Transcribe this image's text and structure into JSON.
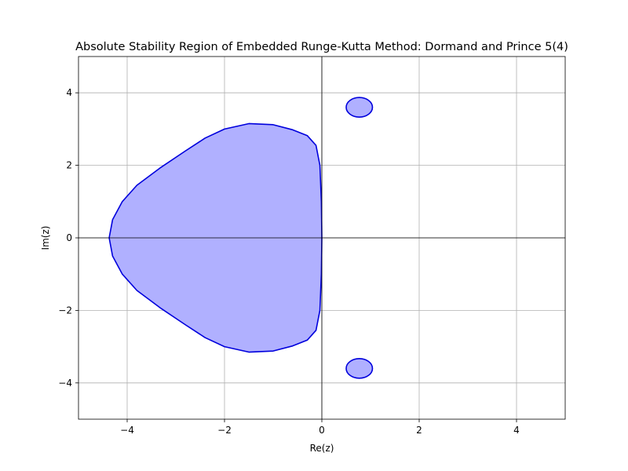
{
  "chart_data": {
    "type": "area",
    "title": "Absolute Stability Region of Embedded Runge-Kutta Method: Dormand and Prince 5(4)",
    "xlabel": "Re(z)",
    "ylabel": "Im(z)",
    "xlim": [
      -5,
      5
    ],
    "ylim": [
      -5,
      5
    ],
    "xticks": [
      -4,
      -2,
      0,
      2,
      4
    ],
    "yticks": [
      -4,
      -2,
      0,
      2,
      4
    ],
    "xtick_labels": [
      "−4",
      "−2",
      "0",
      "2",
      "4"
    ],
    "ytick_labels": [
      "−4",
      "−2",
      "0",
      "2",
      "4"
    ],
    "grid": true,
    "fill_color": "#b0b0ff",
    "line_color": "#0000dd",
    "regions": [
      {
        "points": [
          [
            -4.37,
            0
          ],
          [
            -4.3,
            0.5
          ],
          [
            -4.1,
            1.0
          ],
          [
            -3.8,
            1.45
          ],
          [
            -3.3,
            1.95
          ],
          [
            -2.8,
            2.4
          ],
          [
            -2.4,
            2.75
          ],
          [
            -2.0,
            3.0
          ],
          [
            -1.5,
            3.15
          ],
          [
            -1.0,
            3.12
          ],
          [
            -0.6,
            2.98
          ],
          [
            -0.3,
            2.82
          ],
          [
            -0.12,
            2.55
          ],
          [
            -0.04,
            2.0
          ],
          [
            -0.01,
            1.0
          ],
          [
            0.0,
            0
          ],
          [
            -0.01,
            -1.0
          ],
          [
            -0.04,
            -2.0
          ],
          [
            -0.12,
            -2.55
          ],
          [
            -0.3,
            -2.82
          ],
          [
            -0.6,
            -2.98
          ],
          [
            -1.0,
            -3.12
          ],
          [
            -1.5,
            -3.15
          ],
          [
            -2.0,
            -3.0
          ],
          [
            -2.4,
            -2.75
          ],
          [
            -2.8,
            -2.4
          ],
          [
            -3.3,
            -1.95
          ],
          [
            -3.8,
            -1.45
          ],
          [
            -4.1,
            -1.0
          ],
          [
            -4.3,
            -0.5
          ]
        ]
      },
      {
        "ellipse": {
          "cx": 0.77,
          "cy": 3.6,
          "rx": 0.27,
          "ry": 0.27
        }
      },
      {
        "ellipse": {
          "cx": 0.77,
          "cy": -3.6,
          "rx": 0.27,
          "ry": 0.27
        }
      }
    ]
  }
}
